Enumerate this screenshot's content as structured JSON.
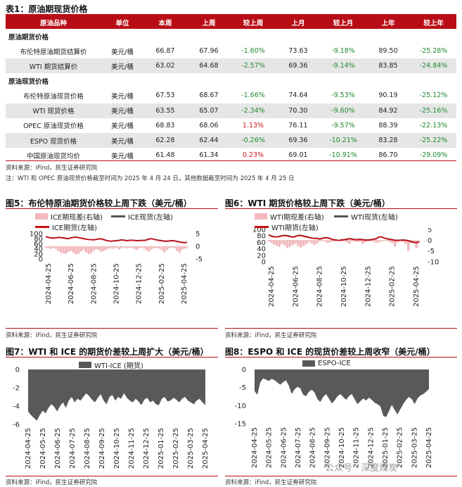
{
  "table": {
    "title": "表1：原油期现货价格",
    "headers": [
      "原油品种",
      "单位",
      "本周",
      "上周",
      "较上周",
      "上月",
      "较上月",
      "上年",
      "较上年"
    ],
    "sections": [
      {
        "name": "原油期货价格",
        "rows": [
          {
            "name": "布伦特原油期货结算价",
            "unit": "美元/桶",
            "this_week": "66.87",
            "last_week": "67.96",
            "wow": "-1.60%",
            "last_month": "73.63",
            "mom": "-9.18%",
            "last_year": "89.50",
            "yoy": "-25.28%"
          },
          {
            "name": "WTI 期货结算价",
            "unit": "美元/桶",
            "this_week": "63.02",
            "last_week": "64.68",
            "wow": "-2.57%",
            "last_month": "69.36",
            "mom": "-9.14%",
            "last_year": "83.85",
            "yoy": "-24.84%"
          }
        ]
      },
      {
        "name": "原油现货价格",
        "rows": [
          {
            "name": "布伦特原油现货价格",
            "unit": "美元/桶",
            "this_week": "67.53",
            "last_week": "68.67",
            "wow": "-1.66%",
            "last_month": "74.64",
            "mom": "-9.53%",
            "last_year": "90.19",
            "yoy": "-25.12%"
          },
          {
            "name": "WTI 现货价格",
            "unit": "美元/桶",
            "this_week": "63.55",
            "last_week": "65.07",
            "wow": "-2.34%",
            "last_month": "70.30",
            "mom": "-9.60%",
            "last_year": "84.92",
            "yoy": "-25.16%"
          },
          {
            "name": "OPEC 原油现货价格",
            "unit": "美元/桶",
            "this_week": "68.83",
            "last_week": "68.06",
            "wow": "1.13%",
            "last_month": "76.11",
            "mom": "-9.57%",
            "last_year": "88.39",
            "yoy": "-22.13%"
          },
          {
            "name": "ESPO 现货价格",
            "unit": "美元/桶",
            "this_week": "62.28",
            "last_week": "62.44",
            "wow": "-0.26%",
            "last_month": "69.36",
            "mom": "-10.21%",
            "last_year": "83.28",
            "yoy": "-25.22%"
          },
          {
            "name": "中国原油现货均价",
            "unit": "美元/桶",
            "this_week": "61.48",
            "last_week": "61.34",
            "wow": "0.23%",
            "last_month": "69.01",
            "mom": "-10.91%",
            "last_year": "86.70",
            "yoy": "-29.09%"
          }
        ]
      }
    ],
    "source": "资料来源：iFind，民生证券研究院",
    "note": "注：WTI 和 OPEC 原油现货价格截至时间为 2025 年 4 月 24 日，其他数据截至时间为 2025 年 4 月 25 日"
  },
  "fig5": {
    "title": "图5：布伦特原油期货价格较上周下跌（美元/桶）",
    "legend": [
      "ICE期现差(右轴)",
      "ICE现货(左轴)",
      "ICE期货(左轴)"
    ],
    "left_ticks": [
      "100",
      "80",
      "60",
      "40",
      "20",
      "0"
    ],
    "right_ticks": [
      "5",
      "0",
      "-5"
    ],
    "x_ticks": [
      "2024-04-25",
      "2024-06-25",
      "2024-08-25",
      "2024-10-25",
      "2024-12-25",
      "2025-02-25",
      "2025-04-25"
    ],
    "source": "资料来源：iFind，民生证券研究院"
  },
  "fig6": {
    "title": "图6：WTI 期货价格较上周下跌（美元/桶）",
    "legend": [
      "WTI期现差(右轴)",
      "WTI现货(左轴)",
      "WTI期货(左轴)"
    ],
    "left_ticks": [
      "100",
      "80",
      "60",
      "40",
      "20",
      "0"
    ],
    "right_ticks": [
      "5",
      "0",
      "-5",
      "-10"
    ],
    "x_ticks": [
      "2024-04-25",
      "2024-06-25",
      "2024-08-25",
      "2024-10-25",
      "2024-12-25",
      "2025-02-25",
      "2025-04-25"
    ],
    "source": "资料来源：iFind，民生证券研究院"
  },
  "fig7": {
    "title": "图7：WTI 和 ICE 的期货价差较上周扩大（美元/桶）",
    "legend": [
      "WTI-ICE (期货)"
    ],
    "y_ticks": [
      "0",
      "-2",
      "-4",
      "-6"
    ],
    "x_ticks": [
      "2024-04-25",
      "2024-05-25",
      "2024-06-25",
      "2024-07-25",
      "2024-08-25",
      "2024-09-25",
      "2024-10-25",
      "2024-11-25",
      "2024-12-25",
      "2025-01-25",
      "2025-02-25",
      "2025-03-25",
      "2025-04-25"
    ],
    "source": "资料来源：iFind，民生证券研究院"
  },
  "fig8": {
    "title": "图8：ESPO 和 ICE 的现货价差较上周收窄（美元/桶）",
    "legend": [
      "ESPO-ICE"
    ],
    "y_ticks": [
      "0",
      "-5",
      "-10",
      "-15"
    ],
    "x_ticks": [
      "2024-04-25",
      "2024-05-25",
      "2024-06-25",
      "2024-07-25",
      "2024-08-25",
      "2024-09-25",
      "2024-10-25",
      "2024-11-25",
      "2024-12-25",
      "2025-01-25",
      "2025-02-25",
      "2025-03-25",
      "2025-04-25"
    ],
    "source": "资料来源：iFind，民生证券研究院",
    "watermark": "公众号 · 深度煤炭"
  },
  "chart_data": [
    {
      "type": "line",
      "id": "fig5",
      "left_ylim": [
        0,
        100
      ],
      "right_ylim": [
        -5,
        5
      ],
      "series": [
        {
          "name": "ICE现货(左轴)",
          "values": [
            89,
            86,
            84,
            83,
            84,
            86,
            85,
            84,
            82,
            81,
            84,
            86,
            87,
            85,
            83,
            81,
            79,
            77,
            77,
            76,
            78,
            80,
            80,
            77,
            74,
            72,
            70,
            72,
            73,
            74,
            76,
            75,
            73,
            74,
            75,
            74,
            73,
            73,
            74,
            74,
            76,
            80,
            80,
            78,
            76,
            74,
            73,
            71,
            71,
            72,
            73,
            72,
            70,
            68,
            66,
            65,
            67
          ]
        },
        {
          "name": "ICE期货(左轴)",
          "values": [
            88,
            85,
            83,
            82,
            83,
            85,
            84,
            83,
            81,
            80,
            83,
            85,
            86,
            84,
            82,
            80,
            78,
            77,
            76,
            75,
            77,
            79,
            79,
            76,
            73,
            71,
            70,
            71,
            72,
            73,
            75,
            74,
            72,
            73,
            74,
            73,
            72,
            72,
            73,
            73,
            75,
            79,
            80,
            77,
            75,
            73,
            72,
            70,
            70,
            71,
            72,
            71,
            69,
            67,
            65,
            64,
            66
          ]
        },
        {
          "name": "ICE期现差(右轴)",
          "values": [
            -0.5,
            -0.8,
            -1.0,
            -0.6,
            -0.9,
            -1.8,
            -2.5,
            -2.8,
            -3.0,
            -2.2,
            -1.8,
            -2.6,
            -3.2,
            -2.9,
            -2.0,
            -1.5,
            -2.4,
            -3.0,
            -2.7,
            -1.8,
            -1.2,
            -1.6,
            -2.2,
            -1.9,
            -1.4,
            -0.9,
            -0.8,
            -1.0,
            -0.6,
            -1.3,
            -0.7,
            -0.4,
            -0.9,
            -0.6,
            -0.5,
            -1.0,
            -1.4,
            -0.8,
            -0.5,
            -0.9,
            -1.6,
            -2.0,
            -1.2,
            -0.8,
            -0.6,
            -0.9,
            -1.5,
            -2.4,
            -1.6,
            -0.8,
            -0.5,
            -0.7,
            -1.8,
            -2.6,
            -1.4,
            -0.9,
            -0.7
          ]
        }
      ]
    },
    {
      "type": "line",
      "id": "fig6",
      "left_ylim": [
        0,
        100
      ],
      "right_ylim": [
        -10,
        5
      ],
      "series": [
        {
          "name": "WTI现货(左轴)",
          "values": [
            84,
            80,
            78,
            77,
            79,
            81,
            82,
            81,
            79,
            77,
            79,
            82,
            82,
            80,
            78,
            76,
            74,
            73,
            73,
            71,
            73,
            75,
            75,
            72,
            69,
            68,
            66,
            68,
            69,
            70,
            72,
            71,
            69,
            69,
            70,
            69,
            68,
            68,
            69,
            70,
            72,
            77,
            77,
            74,
            72,
            70,
            69,
            67,
            67,
            67,
            68,
            67,
            66,
            63,
            61,
            60,
            62
          ]
        },
        {
          "name": "WTI期货(左轴)",
          "values": [
            83,
            79,
            77,
            77,
            78,
            80,
            81,
            80,
            78,
            76,
            78,
            81,
            81,
            79,
            77,
            75,
            73,
            72,
            72,
            70,
            72,
            74,
            74,
            71,
            68,
            67,
            66,
            67,
            68,
            69,
            71,
            70,
            68,
            68,
            69,
            68,
            67,
            67,
            68,
            69,
            71,
            76,
            77,
            73,
            71,
            69,
            68,
            66,
            66,
            66,
            67,
            66,
            65,
            62,
            60,
            59,
            61
          ]
        },
        {
          "name": "WTI期现差(右轴)",
          "values": [
            -0.6,
            -1.2,
            -2.0,
            -2.6,
            -3.0,
            -1.8,
            -2.4,
            -3.6,
            -3.0,
            -2.2,
            -1.6,
            -2.8,
            -3.4,
            -2.6,
            -1.8,
            -0.8,
            -1.4,
            -2.2,
            -1.6,
            -0.6,
            -0.4,
            -0.6,
            -1.4,
            -1.0,
            -0.5,
            -0.3,
            -0.4,
            -0.5,
            -0.4,
            -1.0,
            -1.6,
            -0.6,
            -0.4,
            -0.8,
            -0.6,
            -1.8,
            -1.0,
            -0.5,
            -0.4,
            -0.6,
            -1.2,
            -1.0,
            -0.5,
            -0.3,
            -0.4,
            -0.8,
            -1.4,
            -3.0,
            -1.0,
            -0.4,
            -0.6,
            -1.8,
            -5.0,
            -1.4,
            -0.5,
            -3.6,
            -0.8
          ]
        }
      ]
    },
    {
      "type": "area",
      "id": "fig7",
      "ylim": [
        -6,
        0
      ],
      "series": [
        {
          "name": "WTI-ICE (期货)",
          "values": [
            -4.6,
            -5.0,
            -5.3,
            -5.6,
            -5.0,
            -4.5,
            -4.8,
            -4.2,
            -3.8,
            -4.1,
            -4.6,
            -4.0,
            -3.6,
            -4.2,
            -3.4,
            -3.0,
            -3.6,
            -3.2,
            -3.4,
            -3.0,
            -2.6,
            -2.9,
            -3.3,
            -3.6,
            -3.1,
            -2.7,
            -3.4,
            -3.8,
            -3.0,
            -2.8,
            -3.4,
            -3.0,
            -3.2,
            -2.6,
            -3.1,
            -3.4,
            -3.6,
            -3.2,
            -3.5,
            -3.9,
            -3.3,
            -3.1,
            -3.6,
            -3.4,
            -3.8,
            -3.9,
            -3.2,
            -3.0,
            -3.5,
            -3.4,
            -3.1,
            -3.3,
            -3.6,
            -3.2,
            -3.0,
            -3.4,
            -3.6,
            -3.8,
            -3.4,
            -3.2,
            -3.6,
            -3.9
          ]
        }
      ]
    },
    {
      "type": "area",
      "id": "fig8",
      "ylim": [
        -15,
        0
      ],
      "series": [
        {
          "name": "ESPO-ICE",
          "values": [
            -6.0,
            -7.0,
            -3.5,
            -2.5,
            -2.8,
            -3.2,
            -2.6,
            -3.0,
            -3.6,
            -4.2,
            -3.5,
            -3.0,
            -4.5,
            -6.8,
            -5.5,
            -4.8,
            -5.2,
            -7.0,
            -7.4,
            -6.2,
            -5.6,
            -6.4,
            -8.2,
            -9.0,
            -7.6,
            -6.8,
            -8.0,
            -9.4,
            -8.6,
            -7.4,
            -6.8,
            -7.6,
            -8.4,
            -7.4,
            -6.8,
            -8.2,
            -9.6,
            -8.8,
            -8.0,
            -8.6,
            -7.8,
            -8.4,
            -9.2,
            -9.6,
            -10.2,
            -12.8,
            -13.2,
            -11.6,
            -9.8,
            -11.2,
            -12.4,
            -11.0,
            -9.6,
            -8.4,
            -7.6,
            -8.2,
            -9.6,
            -8.0,
            -7.2,
            -6.8,
            -6.2,
            -5.4
          ]
        }
      ]
    }
  ]
}
